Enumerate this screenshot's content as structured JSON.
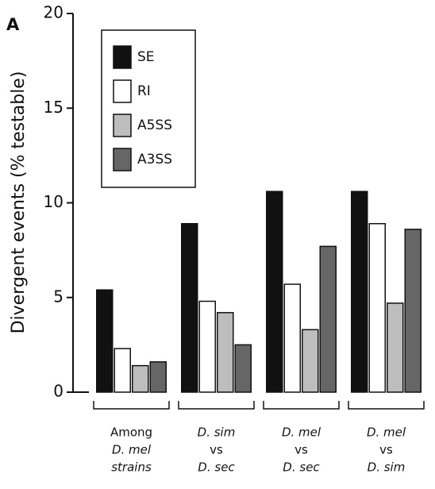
{
  "chart_data": {
    "type": "bar",
    "panel_label": "A",
    "y_label": "Divergent events (% testable)",
    "categories": [
      [
        "Among",
        "D. mel",
        "strains"
      ],
      [
        "D. sim",
        "vs",
        "D. sec"
      ],
      [
        "D. mel",
        "vs",
        "D. sec"
      ],
      [
        "D. mel",
        "vs",
        "D. sim"
      ]
    ],
    "series": [
      {
        "name": "SE",
        "color": "#111111",
        "values": [
          5.4,
          8.9,
          10.6,
          10.6
        ]
      },
      {
        "name": "RI",
        "color": "#ffffff",
        "values": [
          2.3,
          4.8,
          5.7,
          8.9
        ]
      },
      {
        "name": "A5SS",
        "color": "#bdbdbd",
        "values": [
          1.4,
          4.2,
          3.3,
          4.7
        ]
      },
      {
        "name": "A3SS",
        "color": "#666666",
        "values": [
          1.6,
          2.5,
          7.7,
          8.6
        ]
      }
    ],
    "ylim": [
      0,
      20
    ],
    "yticks": [
      0,
      5,
      10,
      15,
      20
    ],
    "grid": false
  }
}
